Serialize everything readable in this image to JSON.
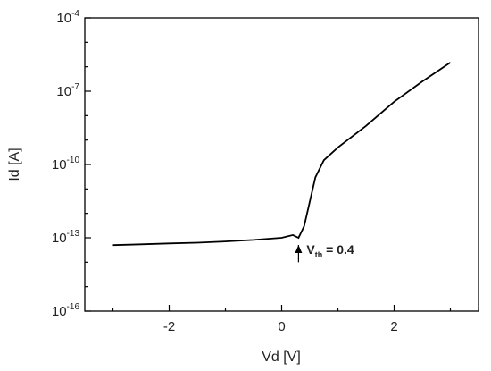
{
  "chart_data": {
    "type": "line",
    "xlabel": "Vd [V]",
    "ylabel": "Id [A]",
    "xlim": [
      -3.5,
      3.5
    ],
    "y_scale": "log",
    "ylim": [
      1e-16,
      0.0001
    ],
    "x_ticks": [
      {
        "value": -2,
        "label": "-2"
      },
      {
        "value": 0,
        "label": "0"
      },
      {
        "value": 2,
        "label": "2"
      }
    ],
    "y_ticks": [
      {
        "value": 1e-16,
        "base": "10",
        "exp": "-16"
      },
      {
        "value": 1e-13,
        "base": "10",
        "exp": "-13"
      },
      {
        "value": 1e-10,
        "base": "10",
        "exp": "-10"
      },
      {
        "value": 1e-07,
        "base": "10",
        "exp": "-7"
      },
      {
        "value": 0.0001,
        "base": "10",
        "exp": "-4"
      }
    ],
    "grid": false,
    "series": [
      {
        "x": [
          -3.0,
          -2.5,
          -2.0,
          -1.5,
          -1.0,
          -0.5,
          0.0,
          0.2,
          0.3,
          0.4,
          0.5,
          0.6,
          0.75,
          1.0,
          1.5,
          2.0,
          2.5,
          3.0
        ],
        "y": [
          5e-14,
          5.4e-14,
          5.9e-14,
          6.3e-14,
          7.1e-14,
          8.2e-14,
          1e-13,
          1.3e-13,
          1e-13,
          3e-13,
          3e-12,
          3e-11,
          1.5e-10,
          5e-10,
          3.8e-09,
          3.7e-08,
          2.5e-07,
          1.5e-06
        ],
        "color": "#000000"
      }
    ],
    "annotations": [
      {
        "text_main": "V",
        "text_sub": "th",
        "text_rest": " = 0.4",
        "arrow_x": 0.3,
        "arrow_from": 1e-14,
        "arrow_to": 1e-13
      }
    ]
  }
}
